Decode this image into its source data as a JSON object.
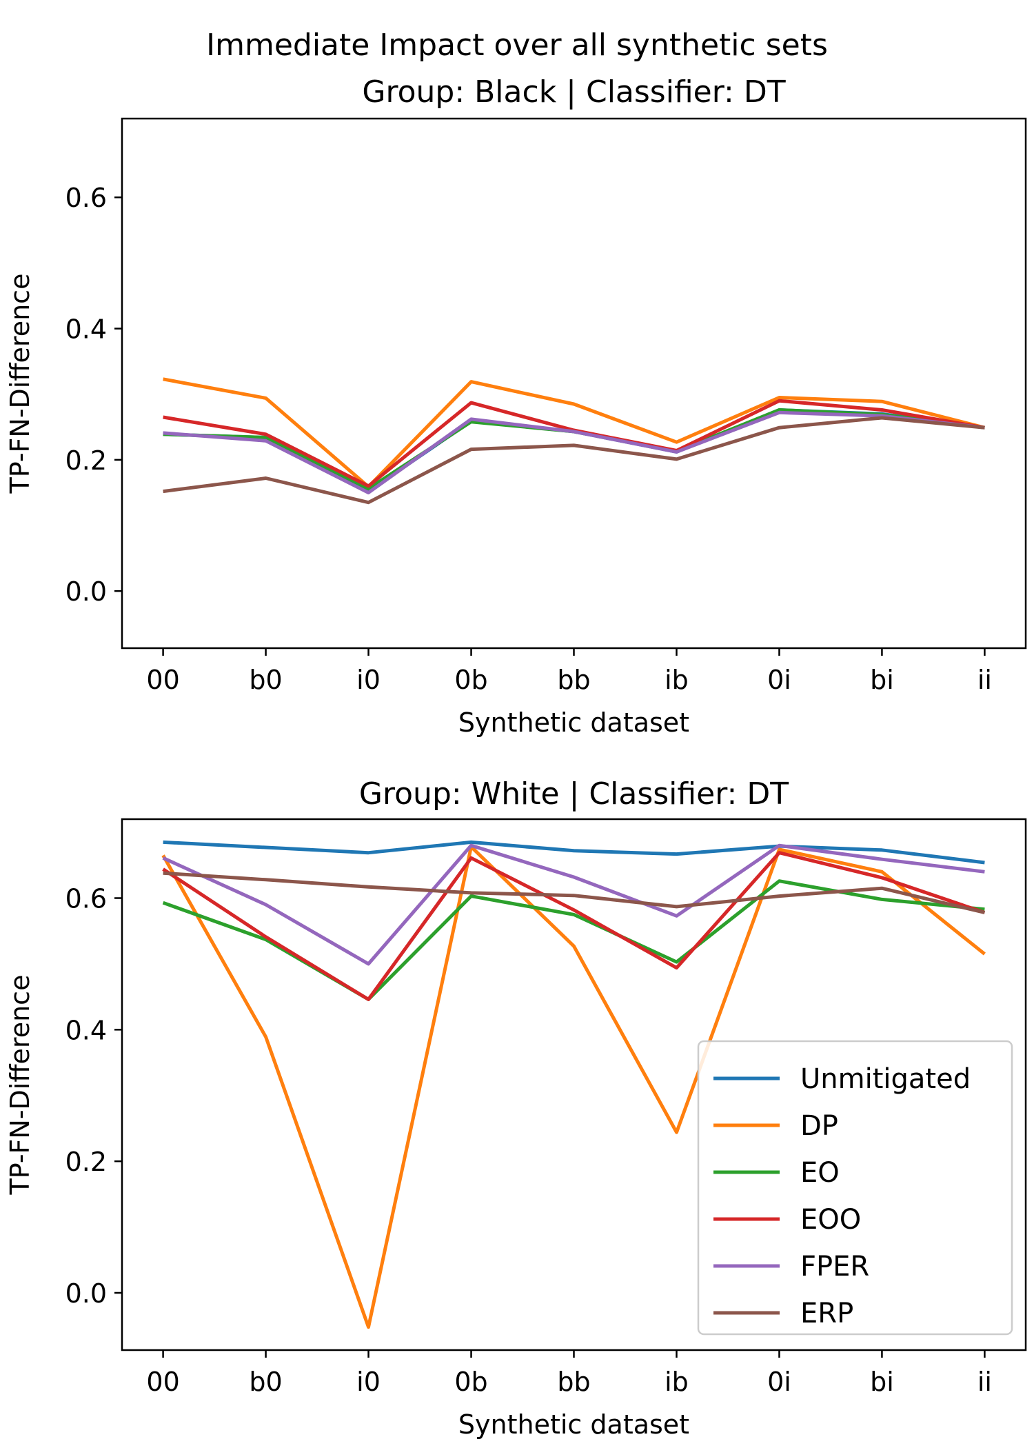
{
  "figure": {
    "suptitle": "Immediate Impact over all synthetic sets"
  },
  "colors": {
    "Unmitigated": "#1f77b4",
    "DP": "#ff7f0e",
    "EO": "#2ca02c",
    "EOO": "#d62728",
    "FPER": "#9467bd",
    "ERP": "#8c564b"
  },
  "chart_data": [
    {
      "type": "line",
      "title": "Group: Black | Classifier: DT",
      "xlabel": "Synthetic dataset",
      "ylabel": "TP-FN-Difference",
      "categories": [
        "00",
        "b0",
        "i0",
        "0b",
        "bb",
        "ib",
        "0i",
        "bi",
        "ii"
      ],
      "ylim": [
        -0.087,
        0.72
      ],
      "yticks": [
        0.0,
        0.2,
        0.4,
        0.6
      ],
      "ytick_labels": [
        "0.0",
        "0.2",
        "0.4",
        "0.6"
      ],
      "grid": false,
      "legend": null,
      "series": [
        {
          "name": "Unmitigated",
          "values": [
            0.239,
            0.234,
            0.152,
            0.259,
            0.243,
            0.212,
            0.276,
            0.27,
            0.249
          ]
        },
        {
          "name": "DP",
          "values": [
            0.323,
            0.294,
            0.159,
            0.319,
            0.285,
            0.227,
            0.295,
            0.289,
            0.249
          ]
        },
        {
          "name": "EO",
          "values": [
            0.239,
            0.234,
            0.156,
            0.258,
            0.243,
            0.213,
            0.276,
            0.269,
            0.249
          ]
        },
        {
          "name": "EOO",
          "values": [
            0.265,
            0.239,
            0.16,
            0.287,
            0.245,
            0.214,
            0.29,
            0.276,
            0.249
          ]
        },
        {
          "name": "FPER",
          "values": [
            0.241,
            0.229,
            0.15,
            0.262,
            0.243,
            0.212,
            0.272,
            0.267,
            0.249
          ]
        },
        {
          "name": "ERP",
          "values": [
            0.152,
            0.172,
            0.135,
            0.216,
            0.222,
            0.201,
            0.249,
            0.264,
            0.249
          ]
        }
      ]
    },
    {
      "type": "line",
      "title": "Group: White | Classifier: DT",
      "xlabel": "Synthetic dataset",
      "ylabel": "TP-FN-Difference",
      "categories": [
        "00",
        "b0",
        "i0",
        "0b",
        "bb",
        "ib",
        "0i",
        "bi",
        "ii"
      ],
      "ylim": [
        -0.087,
        0.72
      ],
      "yticks": [
        0.0,
        0.2,
        0.4,
        0.6
      ],
      "ytick_labels": [
        "0.0",
        "0.2",
        "0.4",
        "0.6"
      ],
      "grid": false,
      "legend": "lower right",
      "legend_entries": [
        "Unmitigated",
        "DP",
        "EO",
        "EOO",
        "FPER",
        "ERP"
      ],
      "series": [
        {
          "name": "Unmitigated",
          "values": [
            0.685,
            0.677,
            0.669,
            0.685,
            0.672,
            0.667,
            0.679,
            0.673,
            0.654
          ]
        },
        {
          "name": "DP",
          "values": [
            0.665,
            0.389,
            -0.052,
            0.678,
            0.527,
            0.244,
            0.674,
            0.64,
            0.515
          ]
        },
        {
          "name": "EO",
          "values": [
            0.593,
            0.537,
            0.446,
            0.603,
            0.575,
            0.503,
            0.626,
            0.598,
            0.583
          ]
        },
        {
          "name": "EOO",
          "values": [
            0.644,
            0.541,
            0.446,
            0.661,
            0.582,
            0.494,
            0.669,
            0.631,
            0.578
          ]
        },
        {
          "name": "FPER",
          "values": [
            0.661,
            0.59,
            0.5,
            0.68,
            0.632,
            0.573,
            0.68,
            0.659,
            0.64
          ]
        },
        {
          "name": "ERP",
          "values": [
            0.638,
            0.628,
            0.617,
            0.608,
            0.604,
            0.587,
            0.603,
            0.615,
            0.578
          ]
        }
      ]
    }
  ]
}
